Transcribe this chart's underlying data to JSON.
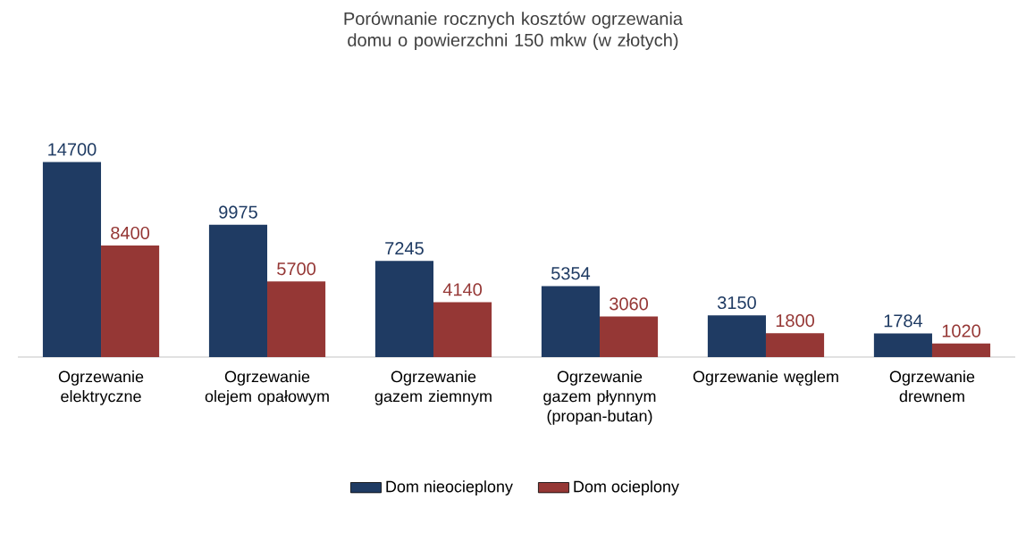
{
  "chart_data": {
    "type": "bar",
    "title": "Porównanie rocznych kosztów ogrzewania domu o powierzchni  150 mkw (w złotych)",
    "categories": [
      "Ogrzewanie elektryczne",
      "Ogrzewanie olejem opałowym",
      "Ogrzewanie gazem ziemnym",
      "Ogrzewanie gazem płynnym (propan-butan)",
      "Ogrzewanie węglem",
      "Ogrzewanie drewnem"
    ],
    "series": [
      {
        "name": "Dom nieocieplony",
        "color": "#1f3b63",
        "values": [
          14700,
          9975,
          7245,
          5354,
          3150,
          1784
        ]
      },
      {
        "name": "Dom ocieplony",
        "color": "#953735",
        "values": [
          8400,
          5700,
          4140,
          3060,
          1800,
          1020
        ]
      }
    ],
    "data_labels": true,
    "legend": "bottom"
  }
}
